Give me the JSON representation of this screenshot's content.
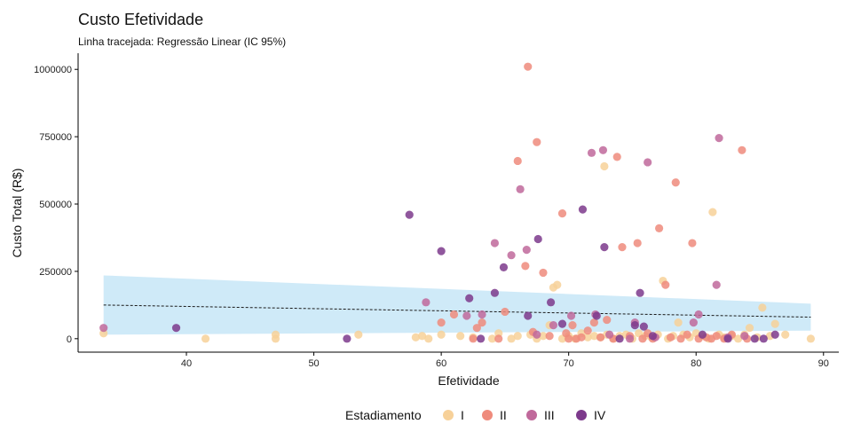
{
  "chart_data": {
    "type": "scatter",
    "title": "Custo Efetividade",
    "subtitle": "Linha tracejada: Regressão Linear (IC 95%)",
    "xlabel": "Efetividade",
    "ylabel": "Custo Total (R$)",
    "xlim": [
      31.5,
      91.2
    ],
    "ylim": [
      -50000,
      1060000
    ],
    "x_ticks": [
      40,
      50,
      60,
      70,
      80,
      90
    ],
    "y_ticks": [
      0,
      250000,
      500000,
      750000,
      1000000
    ],
    "grid": false,
    "legend": {
      "title": "Estadiamento",
      "placement": "bottom"
    },
    "regression": {
      "line": [
        [
          33.5,
          125000
        ],
        [
          89,
          80000
        ]
      ],
      "ci": {
        "x": [
          33.5,
          89
        ],
        "upper": [
          235000,
          130000
        ],
        "lower": [
          15000,
          30000
        ]
      },
      "line_color": "#1a1a1a",
      "ci_color": "#bfe3f5"
    },
    "series": [
      {
        "name": "I",
        "color": "#f7d199",
        "points": [
          [
            33.5,
            20000
          ],
          [
            41.5,
            0
          ],
          [
            47,
            15000
          ],
          [
            47,
            0
          ],
          [
            53.5,
            15000
          ],
          [
            58,
            5000
          ],
          [
            58.5,
            10000
          ],
          [
            59,
            0
          ],
          [
            60,
            15000
          ],
          [
            61.5,
            10000
          ],
          [
            62.5,
            5000
          ],
          [
            64,
            0
          ],
          [
            64.5,
            20000
          ],
          [
            65.5,
            0
          ],
          [
            66,
            10000
          ],
          [
            67,
            15000
          ],
          [
            67.5,
            0
          ],
          [
            68,
            10000
          ],
          [
            68.5,
            50000
          ],
          [
            68.8,
            190000
          ],
          [
            69.1,
            200000
          ],
          [
            69.5,
            0
          ],
          [
            70,
            10000
          ],
          [
            70.5,
            0
          ],
          [
            71,
            20000
          ],
          [
            71.5,
            5000
          ],
          [
            72,
            10000
          ],
          [
            72.5,
            5000
          ],
          [
            72.8,
            640000
          ],
          [
            73,
            15000
          ],
          [
            73.5,
            0
          ],
          [
            74,
            10000
          ],
          [
            74.5,
            15000
          ],
          [
            75,
            0
          ],
          [
            75.5,
            20000
          ],
          [
            76,
            10000
          ],
          [
            76.5,
            5000
          ],
          [
            77,
            15000
          ],
          [
            77.4,
            215000
          ],
          [
            77.8,
            0
          ],
          [
            78.2,
            10000
          ],
          [
            78.6,
            60000
          ],
          [
            79,
            15000
          ],
          [
            79.5,
            5000
          ],
          [
            80,
            20000
          ],
          [
            80.5,
            10000
          ],
          [
            81,
            0
          ],
          [
            81.3,
            470000
          ],
          [
            81.8,
            15000
          ],
          [
            82.2,
            5000
          ],
          [
            82.8,
            10000
          ],
          [
            83.3,
            0
          ],
          [
            83.8,
            15000
          ],
          [
            84.2,
            40000
          ],
          [
            84.8,
            5000
          ],
          [
            85.2,
            115000
          ],
          [
            85.8,
            10000
          ],
          [
            86.2,
            55000
          ],
          [
            87,
            15000
          ],
          [
            89,
            0
          ]
        ]
      },
      {
        "name": "II",
        "color": "#ef8b7c",
        "points": [
          [
            60,
            60000
          ],
          [
            61,
            90000
          ],
          [
            62.5,
            0
          ],
          [
            62.8,
            40000
          ],
          [
            63.2,
            60000
          ],
          [
            64.5,
            0
          ],
          [
            65,
            100000
          ],
          [
            66,
            660000
          ],
          [
            66.8,
            1010000
          ],
          [
            66.6,
            270000
          ],
          [
            67.5,
            730000
          ],
          [
            67.2,
            25000
          ],
          [
            68,
            245000
          ],
          [
            68.5,
            10000
          ],
          [
            69.5,
            465000
          ],
          [
            69.8,
            20000
          ],
          [
            70,
            0
          ],
          [
            70.3,
            50000
          ],
          [
            70.6,
            0
          ],
          [
            71,
            5000
          ],
          [
            71.5,
            30000
          ],
          [
            72,
            60000
          ],
          [
            72.5,
            5000
          ],
          [
            73,
            70000
          ],
          [
            73.5,
            0
          ],
          [
            73.8,
            675000
          ],
          [
            74.2,
            340000
          ],
          [
            74.8,
            10000
          ],
          [
            75.4,
            355000
          ],
          [
            75.8,
            0
          ],
          [
            76.2,
            20000
          ],
          [
            76.6,
            0
          ],
          [
            77.1,
            410000
          ],
          [
            77.6,
            200000
          ],
          [
            78,
            5000
          ],
          [
            78.4,
            580000
          ],
          [
            78.8,
            0
          ],
          [
            79.3,
            15000
          ],
          [
            79.7,
            355000
          ],
          [
            80.2,
            0
          ],
          [
            80.8,
            5000
          ],
          [
            81.2,
            0
          ],
          [
            81.6,
            10000
          ],
          [
            82.2,
            0
          ],
          [
            82.8,
            15000
          ],
          [
            83.6,
            700000
          ],
          [
            84,
            0
          ]
        ]
      },
      {
        "name": "III",
        "color": "#c0699b",
        "points": [
          [
            33.5,
            40000
          ],
          [
            58.8,
            135000
          ],
          [
            62,
            85000
          ],
          [
            63.2,
            90000
          ],
          [
            64.2,
            355000
          ],
          [
            65.5,
            310000
          ],
          [
            66.2,
            555000
          ],
          [
            66.7,
            330000
          ],
          [
            67.5,
            15000
          ],
          [
            68.8,
            50000
          ],
          [
            70.2,
            85000
          ],
          [
            71.8,
            690000
          ],
          [
            72.1,
            90000
          ],
          [
            72.7,
            700000
          ],
          [
            73.2,
            15000
          ],
          [
            74.8,
            0
          ],
          [
            75.2,
            60000
          ],
          [
            76.2,
            655000
          ],
          [
            76.8,
            5000
          ],
          [
            79.8,
            60000
          ],
          [
            80.2,
            90000
          ],
          [
            81.6,
            200000
          ],
          [
            81.8,
            745000
          ],
          [
            82.5,
            5000
          ],
          [
            83.8,
            10000
          ]
        ]
      },
      {
        "name": "IV",
        "color": "#7d3a8c",
        "points": [
          [
            39.2,
            40000
          ],
          [
            52.6,
            0
          ],
          [
            57.5,
            460000
          ],
          [
            60,
            325000
          ],
          [
            62.2,
            150000
          ],
          [
            63.1,
            0
          ],
          [
            64.2,
            170000
          ],
          [
            64.9,
            265000
          ],
          [
            66.8,
            85000
          ],
          [
            67.6,
            370000
          ],
          [
            68.6,
            135000
          ],
          [
            69.5,
            55000
          ],
          [
            71.1,
            480000
          ],
          [
            72.2,
            85000
          ],
          [
            72.8,
            340000
          ],
          [
            74,
            0
          ],
          [
            75.2,
            50000
          ],
          [
            75.6,
            170000
          ],
          [
            75.9,
            45000
          ],
          [
            76.6,
            10000
          ],
          [
            80.5,
            15000
          ],
          [
            82.5,
            0
          ],
          [
            84.6,
            0
          ],
          [
            85.3,
            0
          ],
          [
            86.2,
            15000
          ]
        ]
      }
    ]
  }
}
